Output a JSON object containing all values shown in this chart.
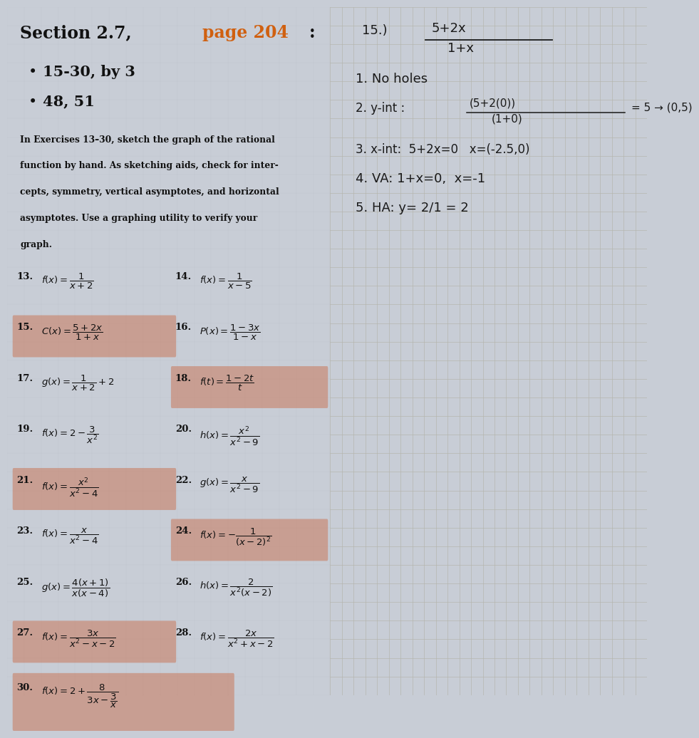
{
  "left_bg": "#c8cdd6",
  "right_bg": "#d8d4cc",
  "grid_color": "#b4b4ac",
  "title_black": "Section 2.7, ",
  "title_orange": "page 204",
  "title_colon": ":",
  "bullet1": "15-30, by 3",
  "bullet2": "48, 51",
  "instruction_line1": "In Exercises 13–30, sketch the graph of the rational",
  "instruction_line2": "function by hand. As sketching aids, check for inter-",
  "instruction_line3": "cepts, symmetry, vertical asymptotes, and horizontal",
  "instruction_line4": "asymptotes. Use a graphing utility to verify your",
  "instruction_line5": "graph.",
  "highlight_color": "#c8785a",
  "highlight_alpha": 0.55,
  "exercises": [
    {
      "num": "13.",
      "left_expr": "$f(x) = \\dfrac{1}{x+2}$",
      "left_hi": false,
      "right_num": "14.",
      "right_expr": "$f(x) = \\dfrac{1}{x-5}$",
      "right_hi": false
    },
    {
      "num": "15.",
      "left_expr": "$C(x) = \\dfrac{5+2x}{1+x}$",
      "left_hi": true,
      "right_num": "16.",
      "right_expr": "$P(x) = \\dfrac{1-3x}{1-x}$",
      "right_hi": false
    },
    {
      "num": "17.",
      "left_expr": "$g(x) = \\dfrac{1}{x+2}+2$",
      "left_hi": false,
      "right_num": "18.",
      "right_expr": "$f(t) = \\dfrac{1-2t}{t}$",
      "right_hi": true
    },
    {
      "num": "19.",
      "left_expr": "$f(x) = 2 - \\dfrac{3}{x^2}$",
      "left_hi": false,
      "right_num": "20.",
      "right_expr": "$h(x) = \\dfrac{x^2}{x^2-9}$",
      "right_hi": false
    },
    {
      "num": "21.",
      "left_expr": "$f(x) = \\dfrac{x^2}{x^2-4}$",
      "left_hi": true,
      "right_num": "22.",
      "right_expr": "$g(x) = \\dfrac{x}{x^2-9}$",
      "right_hi": false
    },
    {
      "num": "23.",
      "left_expr": "$f(x) = \\dfrac{x}{x^2-4}$",
      "left_hi": false,
      "right_num": "24.",
      "right_expr": "$f(x) = -\\dfrac{1}{(x-2)^2}$",
      "right_hi": true
    },
    {
      "num": "25.",
      "left_expr": "$g(x) = \\dfrac{4(x+1)}{x(x-4)}$",
      "left_hi": false,
      "right_num": "26.",
      "right_expr": "$h(x) = \\dfrac{2}{x^2(x-2)}$",
      "right_hi": false
    },
    {
      "num": "27.",
      "left_expr": "$f(x) = \\dfrac{3x}{x^2-x-2}$",
      "left_hi": true,
      "right_num": "28.",
      "right_expr": "$f(x) = \\dfrac{2x}{x^2+x-2}$",
      "right_hi": false
    }
  ],
  "ex30_num": "30.",
  "ex30_expr": "$f(x) = 2 + \\dfrac{8}{3x - \\dfrac{3}{x}}$",
  "ex30_hi": true,
  "hw_title": "15.)",
  "hw_frac_num": "5+2x",
  "hw_frac_den": "1+x",
  "hw_line1": "1. No holes",
  "hw_line2": "2. y-int : (5+2(0)) = 5 → (0,5)",
  "hw_line2b": "            (1+0)",
  "hw_line3": "3. x-int:  5+2x=0   x=(-2.5,0)",
  "hw_line4": "4. VA: 1+x=0,  x=-1",
  "hw_line5": "5. HA: y= 2/1 = 2"
}
